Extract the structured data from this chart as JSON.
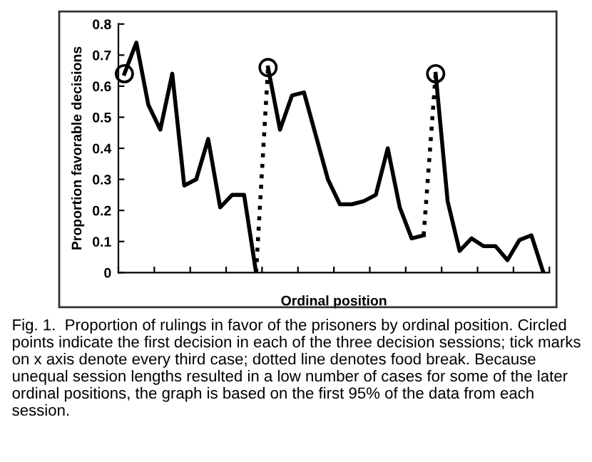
{
  "chart_data": {
    "type": "line",
    "xlabel": "Ordinal position",
    "ylabel": "Proportion favorable decisions",
    "categories": [
      null,
      null,
      null,
      null,
      null,
      null,
      null,
      null,
      null,
      null,
      null,
      null,
      null,
      null,
      null,
      null,
      null,
      null,
      null,
      null,
      null,
      null,
      null,
      null,
      null,
      null,
      null,
      null,
      null,
      null,
      null,
      null,
      null,
      null,
      null,
      null
    ],
    "ylim": [
      0,
      0.8
    ],
    "yticks": [
      0,
      0.1,
      0.2,
      0.3,
      0.4,
      0.5,
      0.6,
      0.7,
      0.8
    ],
    "series": [
      {
        "color": "#000000",
        "line_style": "solid",
        "values": [
          0.64,
          0.74,
          0.54,
          0.46,
          0.64,
          0.28,
          0.3,
          0.43,
          0.21,
          0.25,
          0.25,
          0,
          null,
          null,
          null,
          null,
          null,
          null,
          null,
          null,
          null,
          null,
          null,
          null,
          null,
          null,
          null,
          null,
          null,
          null,
          null,
          null,
          null,
          null,
          null,
          null
        ]
      },
      {
        "color": "#000000",
        "line_style": "dotted",
        "values": [
          null,
          null,
          null,
          null,
          null,
          null,
          null,
          null,
          null,
          null,
          null,
          0,
          0.66,
          null,
          null,
          null,
          null,
          null,
          null,
          null,
          null,
          null,
          null,
          null,
          null,
          null,
          null,
          null,
          null,
          null,
          null,
          null,
          null,
          null,
          null,
          null
        ]
      },
      {
        "color": "#000000",
        "line_style": "solid",
        "values": [
          null,
          null,
          null,
          null,
          null,
          null,
          null,
          null,
          null,
          null,
          null,
          null,
          0.66,
          0.46,
          0.57,
          0.58,
          0.44,
          0.3,
          0.22,
          0.22,
          0.23,
          0.25,
          0.4,
          0.21,
          0.11,
          0.12,
          null,
          null,
          null,
          null,
          null,
          null,
          null,
          null,
          null,
          null
        ]
      },
      {
        "color": "#000000",
        "line_style": "dotted",
        "values": [
          null,
          null,
          null,
          null,
          null,
          null,
          null,
          null,
          null,
          null,
          null,
          null,
          null,
          null,
          null,
          null,
          null,
          null,
          null,
          null,
          null,
          null,
          null,
          null,
          null,
          0.12,
          0.64,
          null,
          null,
          null,
          null,
          null,
          null,
          null,
          null,
          null
        ]
      },
      {
        "color": "#000000",
        "line_style": "solid",
        "values": [
          null,
          null,
          null,
          null,
          null,
          null,
          null,
          null,
          null,
          null,
          null,
          null,
          null,
          null,
          null,
          null,
          null,
          null,
          null,
          null,
          null,
          null,
          null,
          null,
          null,
          null,
          0.64,
          0.23,
          0.07,
          0.11,
          0.085,
          0.085,
          0.04,
          0.105,
          0.12,
          0
        ]
      },
      {
        "type": "scatter",
        "color": "#000000",
        "marker": "circle",
        "values": [
          0.64,
          null,
          null,
          null,
          null,
          null,
          null,
          null,
          null,
          null,
          null,
          null,
          0.66,
          null,
          null,
          null,
          null,
          null,
          null,
          null,
          null,
          null,
          null,
          null,
          null,
          null,
          0.64,
          null,
          null,
          null,
          null,
          null,
          null,
          null,
          null,
          null
        ]
      }
    ],
    "annotations": [
      "Fig. 1.  Proportion of rulings in favor of the prisoners by ordinal position. Circled points indicate the first decision in each of the three decision sessions; tick marks on x axis denote every third case; dotted line denotes food break. Because unequal session lengths resulted in a low number of cases for some of the later ordinal positions, the graph is based on the first 95% of the data from each session."
    ]
  }
}
